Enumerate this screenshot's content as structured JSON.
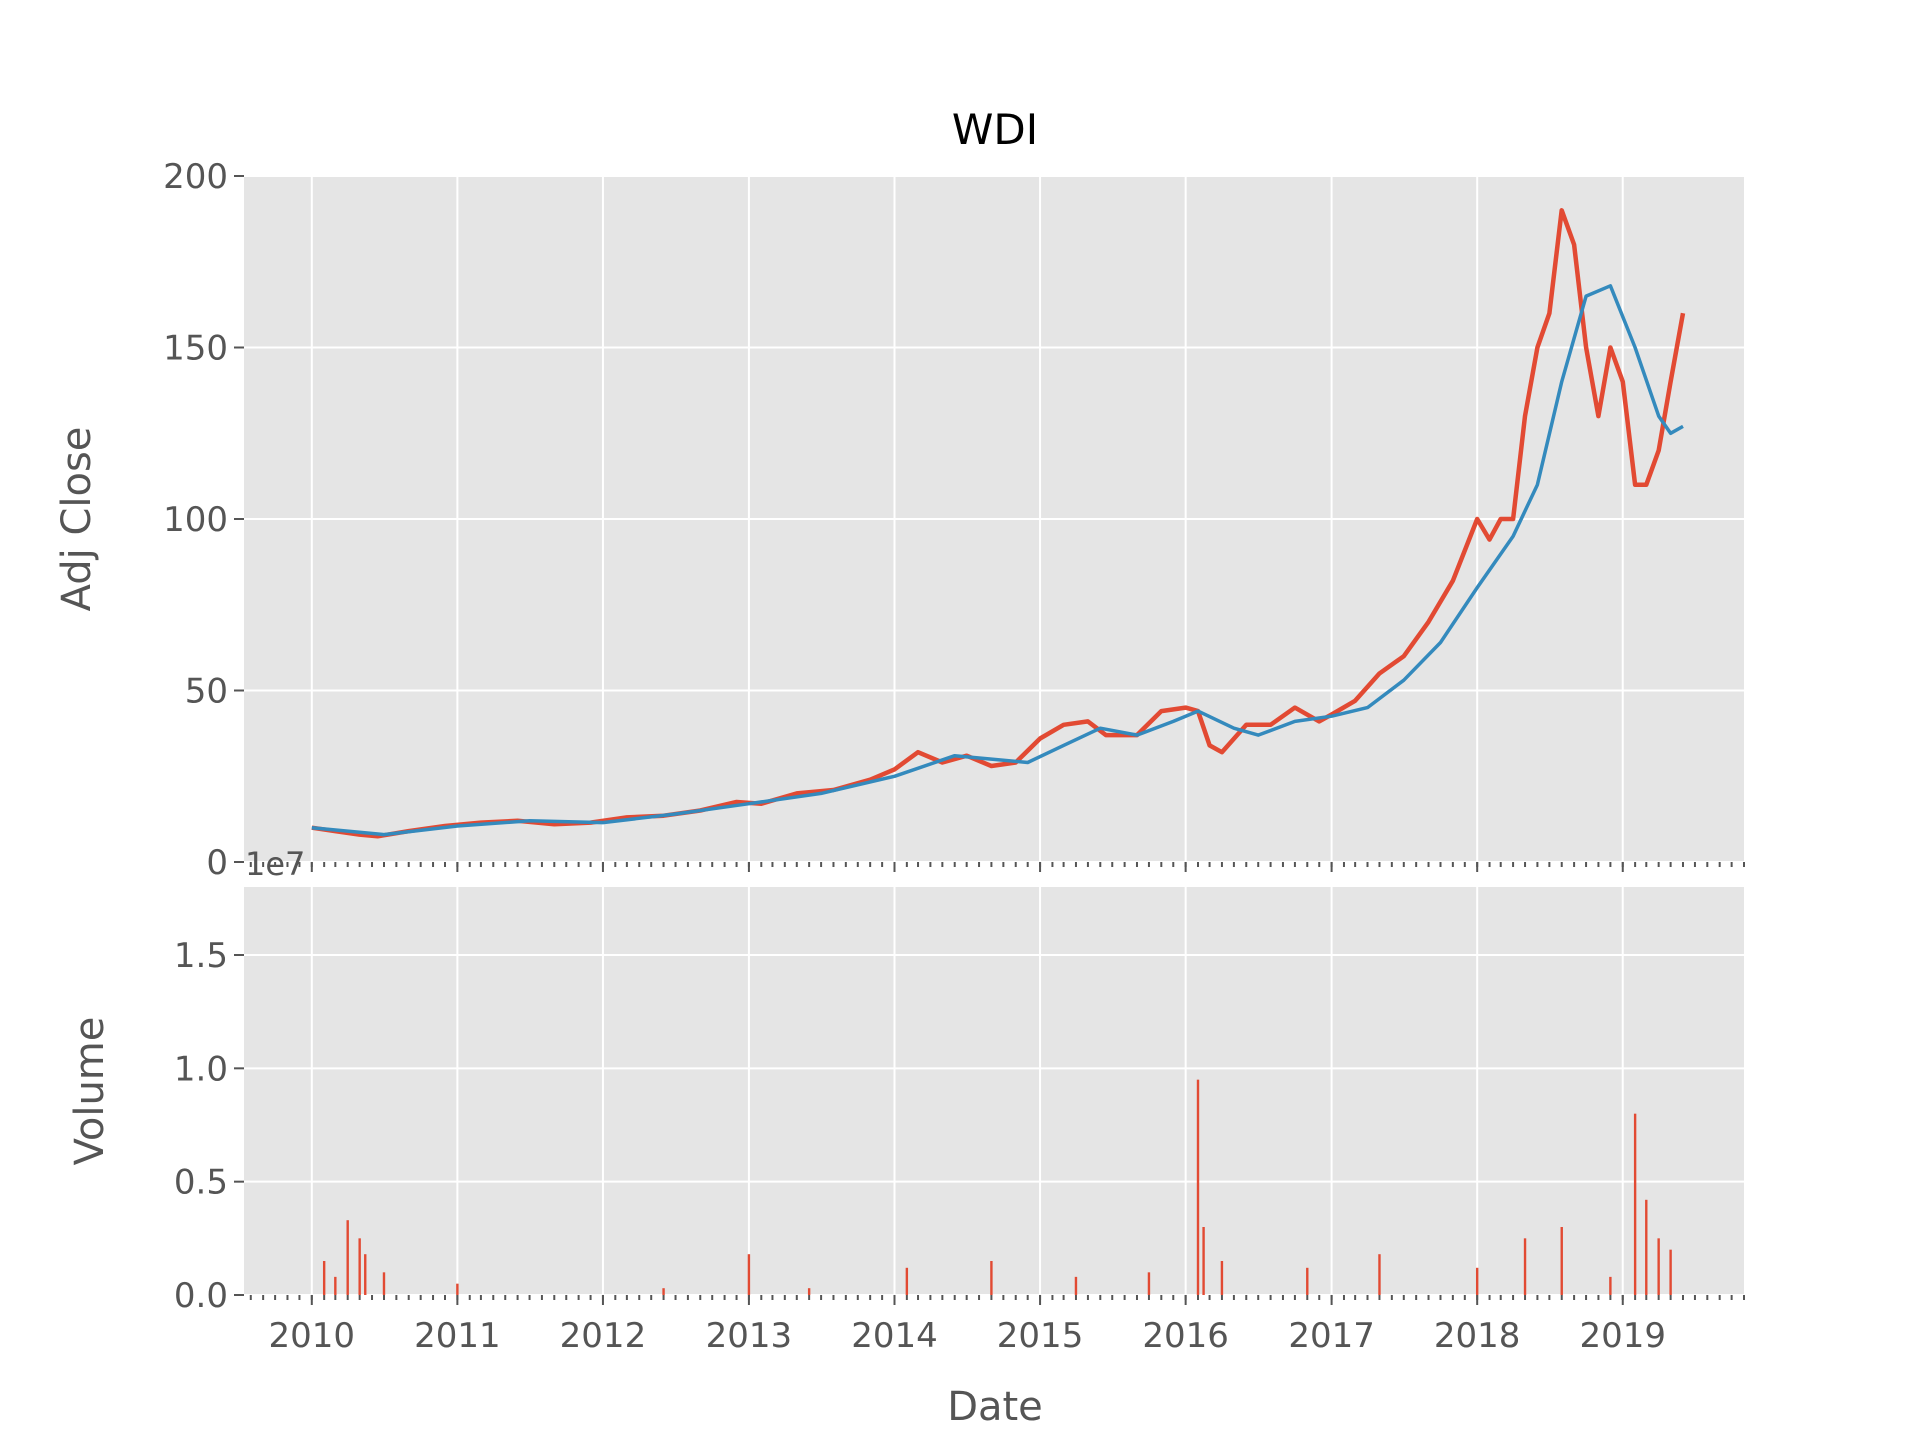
{
  "title": "WDI",
  "chart_data": [
    {
      "type": "line",
      "title": "WDI",
      "xlabel": "",
      "ylabel": "Adj Close",
      "ylim": [
        0,
        200
      ],
      "yticks": [
        0,
        50,
        100,
        150,
        200
      ],
      "grid": true,
      "series": [
        {
          "color": "#E24A33",
          "points": [
            [
              "2010-01-01",
              10
            ],
            [
              "2010-03-01",
              9
            ],
            [
              "2010-05-01",
              8
            ],
            [
              "2010-06-15",
              7.5
            ],
            [
              "2010-09-01",
              9
            ],
            [
              "2010-12-01",
              10.5
            ],
            [
              "2011-03-01",
              11.5
            ],
            [
              "2011-06-01",
              12
            ],
            [
              "2011-09-01",
              11
            ],
            [
              "2011-12-01",
              11.5
            ],
            [
              "2012-03-01",
              13
            ],
            [
              "2012-06-01",
              13.5
            ],
            [
              "2012-09-01",
              15
            ],
            [
              "2012-12-01",
              17.5
            ],
            [
              "2013-02-01",
              17
            ],
            [
              "2013-05-01",
              20
            ],
            [
              "2013-08-01",
              21
            ],
            [
              "2013-11-01",
              24
            ],
            [
              "2014-01-01",
              27
            ],
            [
              "2014-03-01",
              32
            ],
            [
              "2014-05-01",
              29
            ],
            [
              "2014-07-01",
              31
            ],
            [
              "2014-09-01",
              28
            ],
            [
              "2014-11-01",
              29
            ],
            [
              "2015-01-01",
              36
            ],
            [
              "2015-03-01",
              40
            ],
            [
              "2015-05-01",
              41
            ],
            [
              "2015-06-15",
              37
            ],
            [
              "2015-09-01",
              37
            ],
            [
              "2015-11-01",
              44
            ],
            [
              "2016-01-01",
              45
            ],
            [
              "2016-02-01",
              44
            ],
            [
              "2016-03-01",
              34
            ],
            [
              "2016-04-01",
              32
            ],
            [
              "2016-06-01",
              40
            ],
            [
              "2016-08-01",
              40
            ],
            [
              "2016-10-01",
              45
            ],
            [
              "2016-12-01",
              41
            ],
            [
              "2017-01-01",
              43
            ],
            [
              "2017-03-01",
              47
            ],
            [
              "2017-05-01",
              55
            ],
            [
              "2017-07-01",
              60
            ],
            [
              "2017-09-01",
              70
            ],
            [
              "2017-11-01",
              82
            ],
            [
              "2018-01-01",
              100
            ],
            [
              "2018-02-01",
              94
            ],
            [
              "2018-03-01",
              100
            ],
            [
              "2018-04-01",
              100
            ],
            [
              "2018-05-01",
              130
            ],
            [
              "2018-06-01",
              150
            ],
            [
              "2018-07-01",
              160
            ],
            [
              "2018-08-01",
              190
            ],
            [
              "2018-09-01",
              180
            ],
            [
              "2018-10-01",
              150
            ],
            [
              "2018-11-01",
              130
            ],
            [
              "2018-12-01",
              150
            ],
            [
              "2019-01-01",
              140
            ],
            [
              "2019-02-01",
              110
            ],
            [
              "2019-03-01",
              110
            ],
            [
              "2019-04-01",
              120
            ],
            [
              "2019-05-01",
              140
            ],
            [
              "2019-06-01",
              160
            ]
          ]
        },
        {
          "color": "#348ABD",
          "points": [
            [
              "2010-01-01",
              10
            ],
            [
              "2010-07-01",
              8
            ],
            [
              "2011-01-01",
              10.5
            ],
            [
              "2011-07-01",
              12
            ],
            [
              "2012-01-01",
              11.5
            ],
            [
              "2012-07-01",
              14
            ],
            [
              "2013-01-01",
              17
            ],
            [
              "2013-07-01",
              20
            ],
            [
              "2014-01-01",
              25
            ],
            [
              "2014-06-01",
              31
            ],
            [
              "2014-09-01",
              30
            ],
            [
              "2014-12-01",
              29
            ],
            [
              "2015-03-01",
              34
            ],
            [
              "2015-06-01",
              39
            ],
            [
              "2015-09-01",
              37
            ],
            [
              "2015-12-01",
              41
            ],
            [
              "2016-02-01",
              44
            ],
            [
              "2016-05-01",
              39
            ],
            [
              "2016-07-01",
              37
            ],
            [
              "2016-10-01",
              41
            ],
            [
              "2017-01-01",
              42.5
            ],
            [
              "2017-04-01",
              45
            ],
            [
              "2017-07-01",
              53
            ],
            [
              "2017-10-01",
              64
            ],
            [
              "2018-01-01",
              80
            ],
            [
              "2018-04-01",
              95
            ],
            [
              "2018-06-01",
              110
            ],
            [
              "2018-08-01",
              140
            ],
            [
              "2018-10-01",
              165
            ],
            [
              "2018-12-01",
              168
            ],
            [
              "2019-02-01",
              150
            ],
            [
              "2019-04-01",
              130
            ],
            [
              "2019-05-01",
              125
            ],
            [
              "2019-06-01",
              127
            ]
          ]
        }
      ]
    },
    {
      "type": "bar",
      "xlabel": "Date",
      "ylabel": "Volume",
      "yscale_label": "1e7",
      "ylim": [
        0,
        1.8
      ],
      "yticks": [
        "0.0",
        "0.5",
        "1.0",
        "1.5"
      ],
      "color": "#E24A33",
      "grid": true,
      "x_range": [
        "2009-07-15",
        "2019-11-01"
      ],
      "xticks": [
        "2010",
        "2011",
        "2012",
        "2013",
        "2014",
        "2015",
        "2016",
        "2017",
        "2018",
        "2019"
      ],
      "values": [
        [
          "2010-02-01",
          0.15
        ],
        [
          "2010-03-01",
          0.08
        ],
        [
          "2010-04-01",
          0.33
        ],
        [
          "2010-05-01",
          0.25
        ],
        [
          "2010-05-15",
          0.18
        ],
        [
          "2010-07-01",
          0.1
        ],
        [
          "2011-01-01",
          0.05
        ],
        [
          "2012-06-01",
          0.03
        ],
        [
          "2013-01-01",
          0.18
        ],
        [
          "2013-06-01",
          0.03
        ],
        [
          "2014-02-01",
          0.12
        ],
        [
          "2014-09-01",
          0.15
        ],
        [
          "2015-04-01",
          0.08
        ],
        [
          "2015-10-01",
          0.1
        ],
        [
          "2016-02-01",
          0.95
        ],
        [
          "2016-02-15",
          0.3
        ],
        [
          "2016-04-01",
          0.15
        ],
        [
          "2016-11-01",
          0.12
        ],
        [
          "2017-05-01",
          0.18
        ],
        [
          "2018-01-01",
          0.12
        ],
        [
          "2018-05-01",
          0.25
        ],
        [
          "2018-08-01",
          0.3
        ],
        [
          "2018-12-01",
          0.08
        ],
        [
          "2019-02-01",
          0.8
        ],
        [
          "2019-03-01",
          0.42
        ],
        [
          "2019-04-01",
          0.25
        ],
        [
          "2019-05-01",
          0.2
        ]
      ]
    }
  ]
}
